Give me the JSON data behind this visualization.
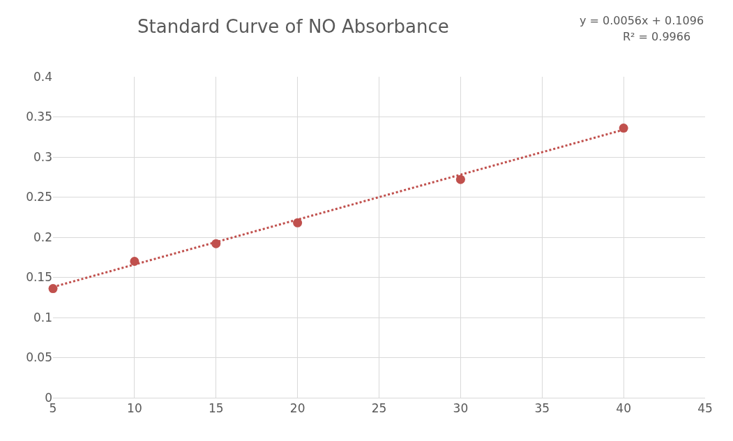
{
  "chart_data": {
    "type": "scatter",
    "title": "Standard Curve of NO Absorbance",
    "annotations": [
      "y = 0.0056x + 0.1096",
      "R² = 0.9966"
    ],
    "x": [
      5,
      10,
      15,
      20,
      30,
      40
    ],
    "series": [
      {
        "color": "#c0504d",
        "marker": "circle",
        "values": [
          0.136,
          0.17,
          0.192,
          0.218,
          0.272,
          0.336
        ]
      },
      {
        "type": "line",
        "color": "#c0504d",
        "marker": "none",
        "line_style": "dotted",
        "x": [
          5,
          40
        ],
        "values": [
          0.138,
          0.334
        ]
      }
    ],
    "xlim": [
      5,
      45
    ],
    "xticks": [
      5,
      10,
      15,
      20,
      25,
      30,
      35,
      40,
      45
    ],
    "ylim": [
      0,
      0.4
    ],
    "yticks": [
      0,
      0.05,
      0.1,
      0.15,
      0.2,
      0.25,
      0.3,
      0.35,
      0.4
    ],
    "grid": true
  }
}
